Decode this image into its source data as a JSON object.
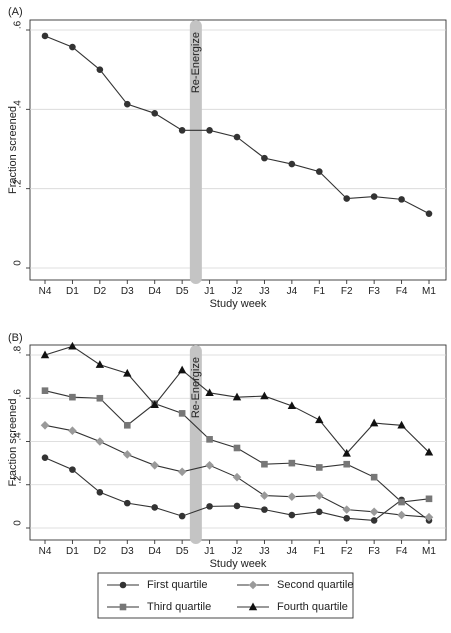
{
  "chart_data": [
    {
      "type": "line",
      "panel_label": "(A)",
      "categories": [
        "N4",
        "D1",
        "D2",
        "D3",
        "D4",
        "D5",
        "J1",
        "J2",
        "J3",
        "J4",
        "F1",
        "F2",
        "F3",
        "F4",
        "M1"
      ],
      "series": [
        {
          "values": [
            0.585,
            0.557,
            0.5,
            0.413,
            0.39,
            0.347,
            0.347,
            0.33,
            0.277,
            0.262,
            0.243,
            0.175,
            0.18,
            0.173,
            0.137
          ],
          "color": "#333333",
          "marker": "circle"
        }
      ],
      "xlabel": "Study week",
      "ylabel": "Fraction screened",
      "ylim": [
        0,
        0.6
      ],
      "yticks": [
        0,
        0.2,
        0.4,
        0.6
      ],
      "ytick_labels": [
        "0",
        ".2",
        ".4",
        ".6"
      ],
      "grid": true,
      "annotation": {
        "text": "Re-Energize",
        "between": [
          "D5",
          "J1"
        ]
      }
    },
    {
      "type": "line",
      "panel_label": "(B)",
      "categories": [
        "N4",
        "D1",
        "D2",
        "D3",
        "D4",
        "D5",
        "J1",
        "J2",
        "J3",
        "J4",
        "F1",
        "F2",
        "F3",
        "F4",
        "M1"
      ],
      "series": [
        {
          "name": "First quartile",
          "values": [
            0.325,
            0.27,
            0.165,
            0.115,
            0.095,
            0.055,
            0.1,
            0.102,
            0.085,
            0.06,
            0.075,
            0.045,
            0.035,
            0.13,
            0.035
          ],
          "color": "#333333",
          "marker": "circle"
        },
        {
          "name": "Second quartile",
          "values": [
            0.475,
            0.45,
            0.4,
            0.34,
            0.29,
            0.26,
            0.29,
            0.235,
            0.15,
            0.145,
            0.15,
            0.085,
            0.075,
            0.06,
            0.05
          ],
          "color": "#9a9a9a",
          "marker": "diamond"
        },
        {
          "name": "Third quartile",
          "values": [
            0.635,
            0.605,
            0.6,
            0.475,
            0.575,
            0.53,
            0.41,
            0.37,
            0.295,
            0.3,
            0.28,
            0.295,
            0.235,
            0.12,
            0.135
          ],
          "color": "#777777",
          "marker": "square"
        },
        {
          "name": "Fourth quartile",
          "values": [
            0.8,
            0.84,
            0.755,
            0.715,
            0.57,
            0.73,
            0.625,
            0.605,
            0.61,
            0.565,
            0.5,
            0.345,
            0.485,
            0.475,
            0.35
          ],
          "color": "#111111",
          "marker": "triangle"
        }
      ],
      "xlabel": "Study week",
      "ylabel": "Fraction screened",
      "ylim": [
        0,
        0.8
      ],
      "yticks": [
        0,
        0.2,
        0.4,
        0.6,
        0.8
      ],
      "ytick_labels": [
        "0",
        ".2",
        ".4",
        ".6",
        ".8"
      ],
      "grid": true,
      "legend_position": "bottom",
      "annotation": {
        "text": "Re-Energize",
        "between": [
          "D5",
          "J1"
        ]
      }
    }
  ]
}
